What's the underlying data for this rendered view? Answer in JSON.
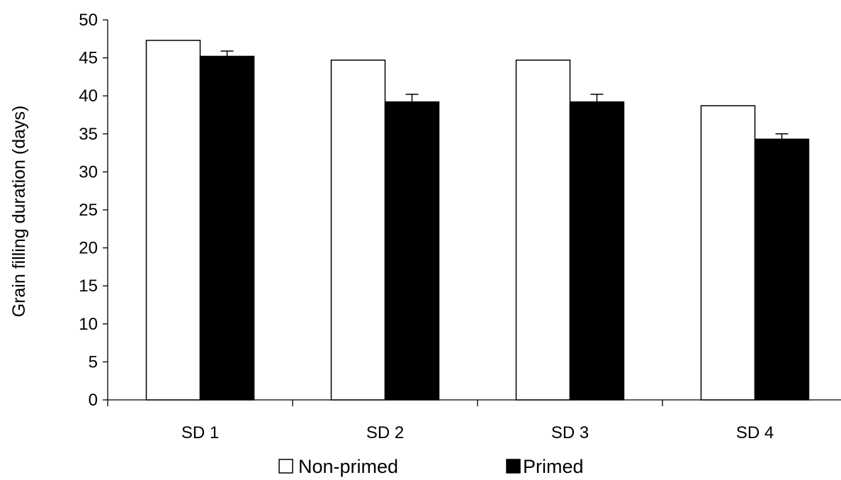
{
  "chart_data": {
    "type": "bar",
    "title": "",
    "xlabel": "",
    "ylabel": "Grain filling duration (days)",
    "ylim": [
      0,
      50
    ],
    "yticks": [
      0,
      5,
      10,
      15,
      20,
      25,
      30,
      35,
      40,
      45,
      50
    ],
    "categories": [
      "SD 1",
      "SD 2",
      "SD 3",
      "SD 4"
    ],
    "series": [
      {
        "name": "Non-primed",
        "values": [
          47.3,
          44.7,
          44.7,
          38.7
        ],
        "errors": [
          0,
          0,
          0,
          0
        ],
        "color": "#ffffff"
      },
      {
        "name": "Primed",
        "values": [
          45.2,
          39.2,
          39.2,
          34.3
        ],
        "errors": [
          0.7,
          1.0,
          1.0,
          0.7
        ],
        "color": "#000000"
      }
    ],
    "grid": false,
    "legend": "bottom"
  }
}
